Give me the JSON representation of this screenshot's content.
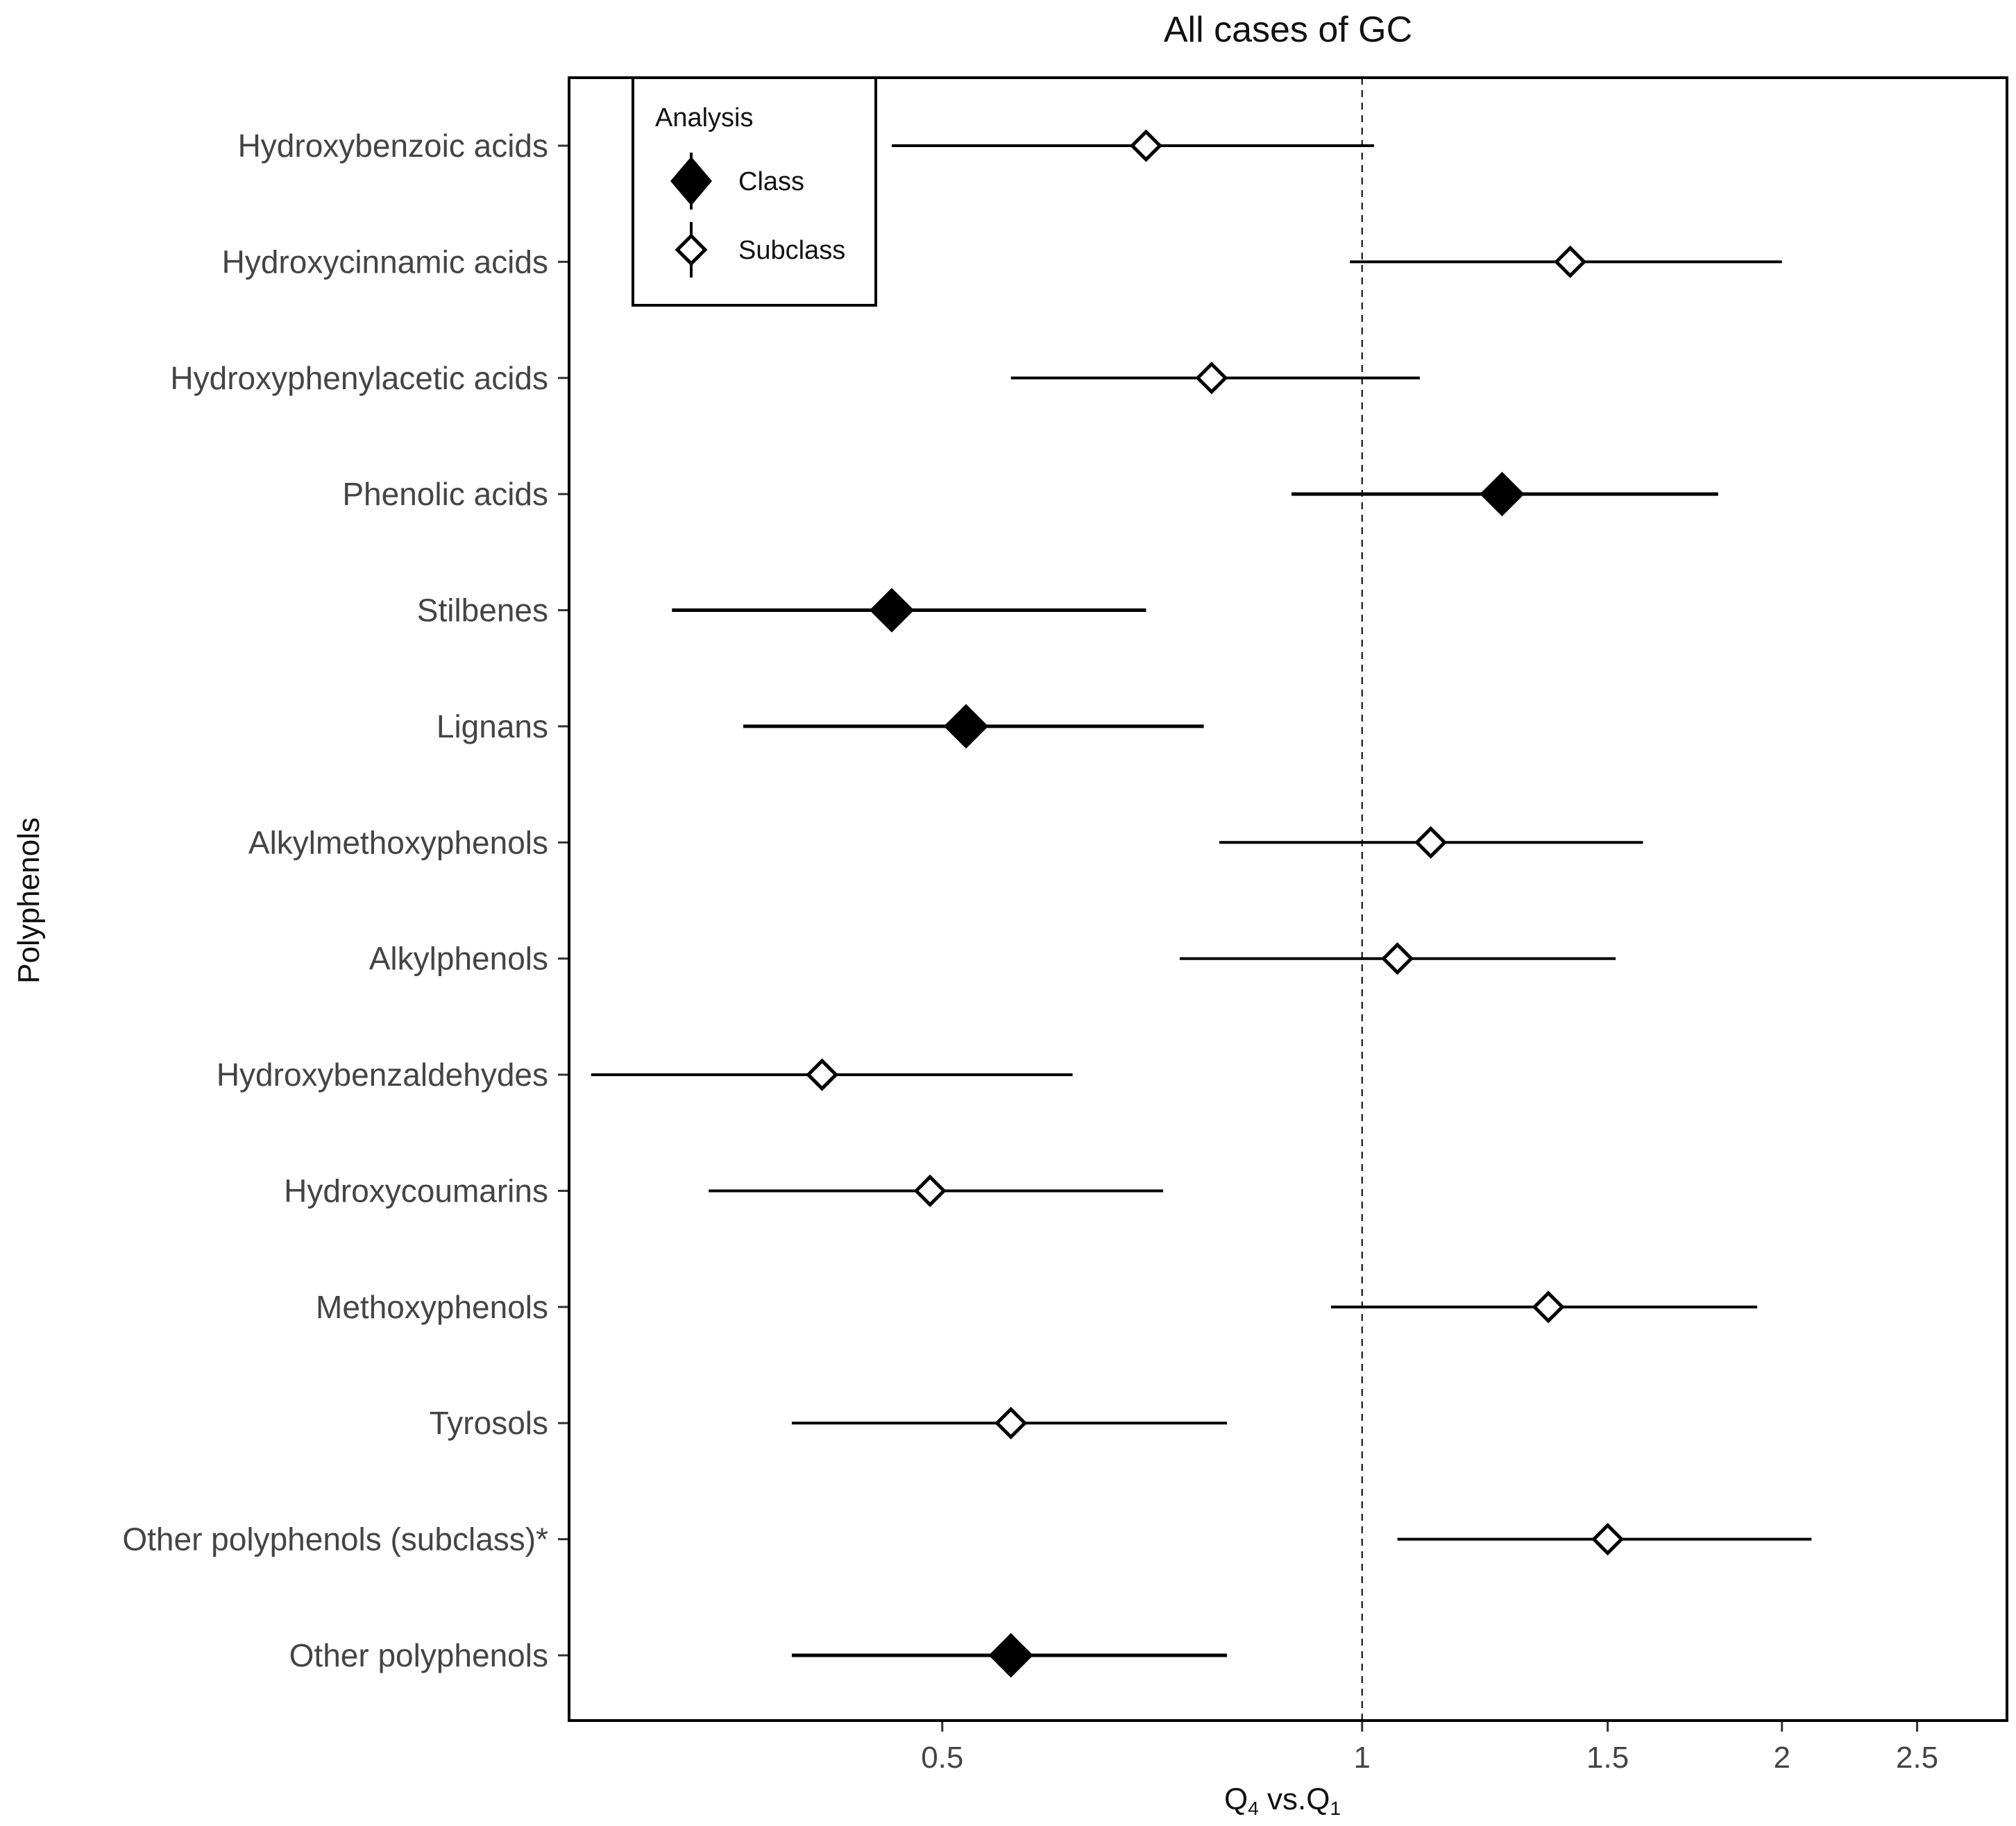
{
  "chart_data": {
    "type": "scatter",
    "subtype": "forest-plot",
    "title": "All cases of GC",
    "xlabel": "Q4 vs.Q1",
    "xlabel_parts": {
      "q": "Q",
      "sub_a": "4",
      "mid": " vs.Q",
      "sub_b": "1"
    },
    "ylabel": "Polyphenols",
    "x_scale": "log",
    "xlim": [
      0.27,
      2.9
    ],
    "x_ticks": [
      0.5,
      1,
      1.5,
      2,
      2.5
    ],
    "x_tick_labels": [
      "0.5",
      "1",
      "1.5",
      "2",
      "2.5"
    ],
    "reference_line": 1,
    "grid": false,
    "legend": {
      "title": "Analysis",
      "position": "top-left",
      "entries": [
        {
          "label": "Class",
          "marker": "filled-diamond"
        },
        {
          "label": "Subclass",
          "marker": "open-diamond"
        }
      ]
    },
    "rows": [
      {
        "label": "Hydroxybenzoic acids",
        "analysis": "Subclass",
        "estimate": 0.7,
        "lower": 0.46,
        "upper": 1.02
      },
      {
        "label": "Hydroxycinnamic acids",
        "analysis": "Subclass",
        "estimate": 1.41,
        "lower": 0.98,
        "upper": 2.0
      },
      {
        "label": "Hydroxyphenylacetic acids",
        "analysis": "Subclass",
        "estimate": 0.78,
        "lower": 0.56,
        "upper": 1.1
      },
      {
        "label": "Phenolic acids",
        "analysis": "Class",
        "estimate": 1.26,
        "lower": 0.89,
        "upper": 1.8
      },
      {
        "label": "Stilbenes",
        "analysis": "Class",
        "estimate": 0.46,
        "lower": 0.32,
        "upper": 0.7
      },
      {
        "label": "Lignans",
        "analysis": "Class",
        "estimate": 0.52,
        "lower": 0.36,
        "upper": 0.77
      },
      {
        "label": "Alkylmethoxyphenols",
        "analysis": "Subclass",
        "estimate": 1.12,
        "lower": 0.79,
        "upper": 1.59
      },
      {
        "label": "Alkylphenols",
        "analysis": "Subclass",
        "estimate": 1.06,
        "lower": 0.74,
        "upper": 1.52
      },
      {
        "label": "Hydroxybenzaldehydes",
        "analysis": "Subclass",
        "estimate": 0.41,
        "lower": 0.28,
        "upper": 0.62
      },
      {
        "label": "Hydroxycoumarins",
        "analysis": "Subclass",
        "estimate": 0.49,
        "lower": 0.34,
        "upper": 0.72
      },
      {
        "label": "Methoxyphenols",
        "analysis": "Subclass",
        "estimate": 1.36,
        "lower": 0.95,
        "upper": 1.92
      },
      {
        "label": "Tyrosols",
        "analysis": "Subclass",
        "estimate": 0.56,
        "lower": 0.39,
        "upper": 0.8
      },
      {
        "label": "Other polyphenols (subclass)*",
        "analysis": "Subclass",
        "estimate": 1.5,
        "lower": 1.06,
        "upper": 2.1
      },
      {
        "label": "Other polyphenols",
        "analysis": "Class",
        "estimate": 0.56,
        "lower": 0.39,
        "upper": 0.8
      }
    ]
  }
}
